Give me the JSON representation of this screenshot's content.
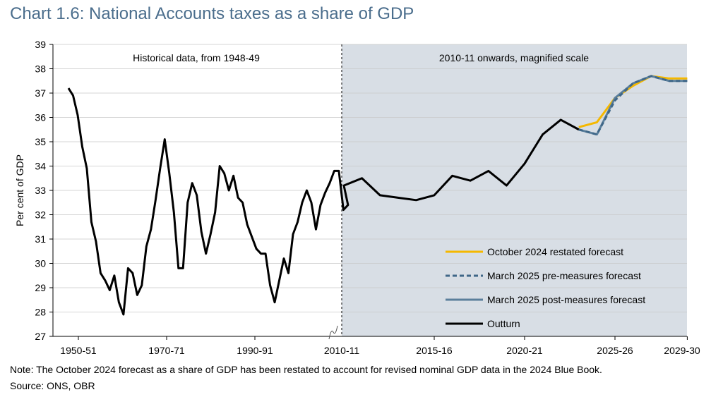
{
  "title": "Chart 1.6: National Accounts taxes as a share of GDP",
  "note": "Note: The October 2024 forecast as a share of GDP has been restated to account for revised nominal GDP data in the 2024 Blue Book.",
  "source": "Source: ONS, OBR",
  "colors": {
    "outturn": "#000000",
    "october": "#f5b800",
    "march_pre": "#3f6788",
    "march_post": "#5b7f9c",
    "shaded": "#d8dee5"
  },
  "chart_data": {
    "type": "line",
    "title": "Chart 1.6: National Accounts taxes as a share of GDP",
    "ylabel": "Per cent of GDP",
    "ylim": [
      27,
      39
    ],
    "yticks": [
      27,
      28,
      29,
      30,
      31,
      32,
      33,
      34,
      35,
      36,
      37,
      38,
      39
    ],
    "grid": true,
    "xaxis_break": "2010-11",
    "panels": [
      {
        "label": "Historical data, from 1948-49",
        "scale": "normal",
        "ticks": [
          "1950-51",
          "1970-71",
          "1990-91",
          "2010-11"
        ]
      },
      {
        "label": "2010-11 onwards, magnified scale",
        "scale": "magnified",
        "ticks": [
          "2010-11",
          "2015-16",
          "2020-21",
          "2025-26",
          "2029-30"
        ]
      }
    ],
    "legend": {
      "position": "bottom-right",
      "entries": [
        "October 2024 restated forecast",
        "March 2025 pre-measures forecast",
        "March 2025 post-measures forecast",
        "Outturn"
      ]
    },
    "historical_outturn": {
      "start_year": 1948,
      "values": [
        37.2,
        36.9,
        36.1,
        34.8,
        33.9,
        31.7,
        30.9,
        29.6,
        29.3,
        28.9,
        29.5,
        28.4,
        27.9,
        29.8,
        29.6,
        28.7,
        29.1,
        30.7,
        31.4,
        32.6,
        33.9,
        35.1,
        33.7,
        32.1,
        29.8,
        29.8,
        32.5,
        33.3,
        32.8,
        31.3,
        30.4,
        31.2,
        32.1,
        34.0,
        33.7,
        33.0,
        33.6,
        32.7,
        32.5,
        31.6,
        31.1,
        30.6,
        30.4,
        30.4,
        29.1,
        28.4,
        29.3,
        30.2,
        29.6,
        31.2,
        31.7,
        32.5,
        33.0,
        32.5,
        31.4,
        32.4,
        32.9,
        33.3,
        33.8,
        33.8,
        32.2,
        32.4
      ]
    },
    "x": [
      "2010-11",
      "2011-12",
      "2012-13",
      "2013-14",
      "2014-15",
      "2015-16",
      "2016-17",
      "2017-18",
      "2018-19",
      "2019-20",
      "2020-21",
      "2021-22",
      "2022-23",
      "2023-24",
      "2024-25",
      "2025-26",
      "2026-27",
      "2027-28",
      "2028-29",
      "2029-30"
    ],
    "series": [
      {
        "name": "Outturn",
        "values": [
          33.2,
          33.5,
          32.8,
          32.7,
          32.6,
          32.8,
          33.6,
          33.4,
          33.8,
          33.2,
          34.1,
          35.3,
          35.9,
          35.5,
          null,
          null,
          null,
          null,
          null,
          null
        ]
      },
      {
        "name": "October 2024 restated forecast",
        "values": [
          null,
          null,
          null,
          null,
          null,
          null,
          null,
          null,
          null,
          null,
          null,
          null,
          null,
          35.6,
          35.8,
          36.8,
          37.3,
          37.7,
          37.6,
          37.6
        ]
      },
      {
        "name": "March 2025 pre-measures forecast",
        "values": [
          null,
          null,
          null,
          null,
          null,
          null,
          null,
          null,
          null,
          null,
          null,
          null,
          null,
          35.5,
          35.3,
          36.7,
          37.4,
          37.7,
          37.5,
          37.5
        ]
      },
      {
        "name": "March 2025 post-measures forecast",
        "values": [
          null,
          null,
          null,
          null,
          null,
          null,
          null,
          null,
          null,
          null,
          null,
          null,
          null,
          35.5,
          35.3,
          36.8,
          37.4,
          37.7,
          37.5,
          37.5
        ]
      }
    ]
  }
}
